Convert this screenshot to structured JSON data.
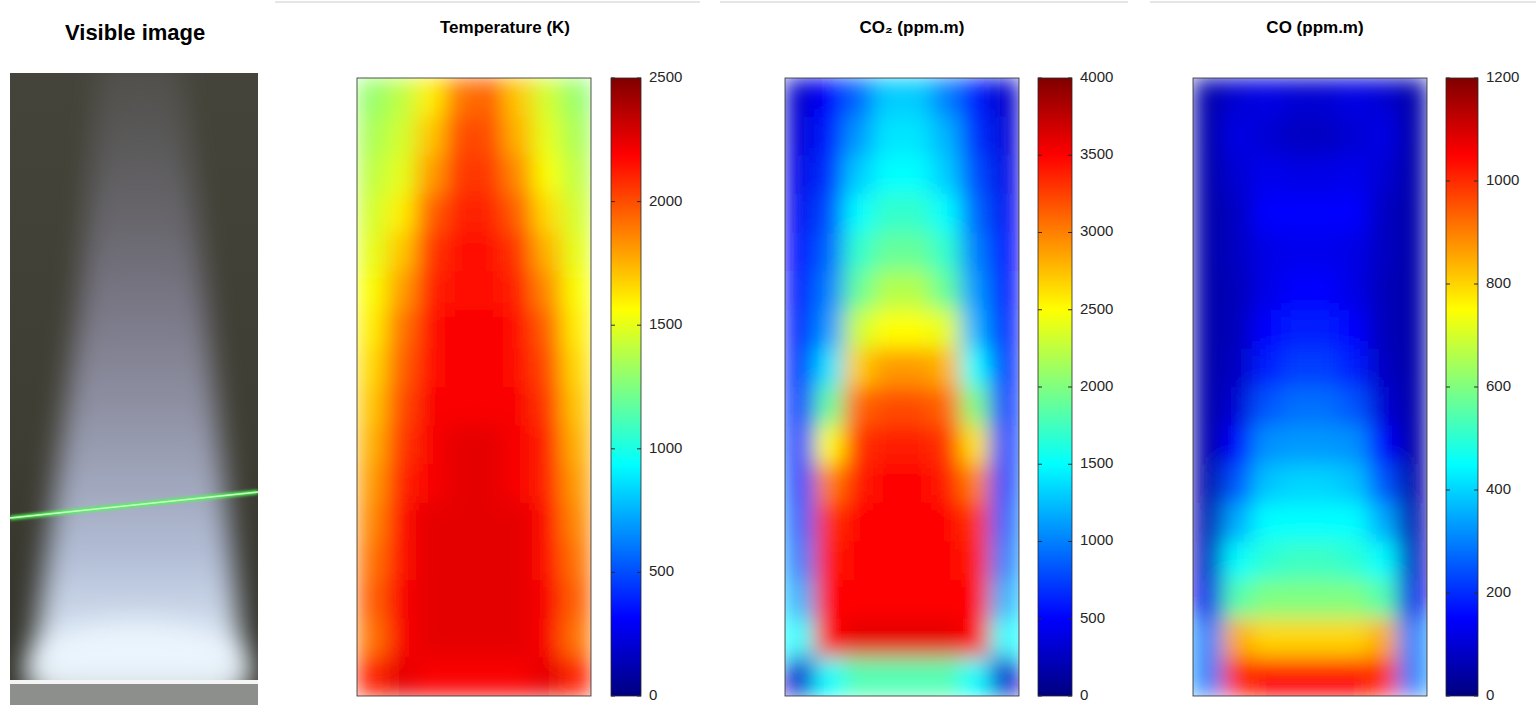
{
  "chart_data": [
    {
      "type": "image",
      "title": "Visible image"
    },
    {
      "type": "heatmap",
      "title": "Temperature (K)",
      "zlim": [
        0,
        2500
      ],
      "zticks": [
        0,
        500,
        1000,
        1500,
        2000,
        2500
      ],
      "tick_labels": false,
      "cells": [
        [
          1300,
          1400,
          1600,
          1900,
          1950,
          1700,
          1450,
          1300
        ],
        [
          1350,
          1450,
          1700,
          2000,
          2000,
          1750,
          1500,
          1350
        ],
        [
          1400,
          1500,
          1800,
          2050,
          2050,
          1850,
          1550,
          1400
        ],
        [
          1450,
          1600,
          1950,
          2100,
          2100,
          1950,
          1650,
          1450
        ],
        [
          1500,
          1700,
          2050,
          2150,
          2150,
          2050,
          1750,
          1500
        ],
        [
          1550,
          1800,
          2100,
          2150,
          2150,
          2100,
          1850,
          1550
        ],
        [
          1600,
          1900,
          2150,
          2200,
          2200,
          2150,
          1950,
          1600
        ],
        [
          1650,
          1950,
          2150,
          2200,
          2200,
          2150,
          2000,
          1650
        ],
        [
          1700,
          2000,
          2200,
          2200,
          2200,
          2200,
          2050,
          1700
        ],
        [
          1750,
          2050,
          2200,
          2250,
          2250,
          2200,
          2100,
          1750
        ],
        [
          1800,
          2100,
          2200,
          2250,
          2250,
          2200,
          2100,
          1800
        ],
        [
          1850,
          2150,
          2250,
          2250,
          2250,
          2250,
          2150,
          1850
        ],
        [
          1900,
          2150,
          2250,
          2250,
          2250,
          2250,
          2150,
          1900
        ],
        [
          1950,
          2200,
          2250,
          2250,
          2250,
          2250,
          2200,
          1950
        ],
        [
          1900,
          2200,
          2250,
          2250,
          2250,
          2250,
          2200,
          1900
        ],
        [
          2100,
          2250,
          2200,
          2200,
          2200,
          2200,
          2250,
          2100
        ]
      ]
    },
    {
      "type": "heatmap",
      "title": "CO₂ (ppm.m)",
      "zlim": [
        0,
        4000
      ],
      "zticks": [
        0,
        500,
        1000,
        1500,
        2000,
        2500,
        3000,
        3500,
        4000
      ],
      "tick_labels": false,
      "cells": [
        [
          300,
          500,
          900,
          1300,
          1300,
          1000,
          600,
          300
        ],
        [
          350,
          600,
          1100,
          1400,
          1400,
          1200,
          700,
          350
        ],
        [
          400,
          700,
          1300,
          1500,
          1500,
          1300,
          800,
          400
        ],
        [
          450,
          800,
          1500,
          1700,
          1700,
          1500,
          900,
          450
        ],
        [
          500,
          900,
          1700,
          1900,
          1900,
          1700,
          1000,
          500
        ],
        [
          550,
          1000,
          1900,
          2200,
          2200,
          1900,
          1100,
          550
        ],
        [
          600,
          1100,
          2300,
          2500,
          2500,
          2400,
          1200,
          600
        ],
        [
          650,
          1400,
          2700,
          2900,
          2900,
          2800,
          1500,
          650
        ],
        [
          700,
          1900,
          3100,
          3200,
          3200,
          3100,
          2000,
          700
        ],
        [
          750,
          2500,
          3300,
          3400,
          3400,
          3300,
          2600,
          750
        ],
        [
          800,
          3000,
          3400,
          3500,
          3500,
          3400,
          3000,
          800
        ],
        [
          900,
          3300,
          3500,
          3500,
          3500,
          3500,
          3300,
          900
        ],
        [
          1000,
          3400,
          3500,
          3500,
          3500,
          3500,
          3400,
          1000
        ],
        [
          1200,
          3500,
          3500,
          3500,
          3500,
          3500,
          3500,
          1200
        ],
        [
          1500,
          3500,
          3600,
          3600,
          3600,
          3600,
          3500,
          1500
        ],
        [
          300,
          1500,
          1800,
          1800,
          1800,
          1800,
          1500,
          300
        ]
      ]
    },
    {
      "type": "heatmap",
      "title": "CO (ppm.m)",
      "zlim": [
        0,
        1200
      ],
      "zticks": [
        0,
        200,
        400,
        600,
        800,
        1000,
        1200
      ],
      "tick_labels": false,
      "cells": [
        [
          50,
          100,
          120,
          100,
          100,
          120,
          100,
          50
        ],
        [
          50,
          120,
          100,
          80,
          80,
          100,
          120,
          50
        ],
        [
          50,
          100,
          130,
          120,
          120,
          130,
          100,
          50
        ],
        [
          50,
          80,
          150,
          150,
          150,
          150,
          80,
          50
        ],
        [
          50,
          80,
          120,
          130,
          130,
          120,
          80,
          50
        ],
        [
          50,
          70,
          120,
          150,
          150,
          120,
          70,
          50
        ],
        [
          50,
          70,
          150,
          180,
          180,
          150,
          70,
          50
        ],
        [
          50,
          80,
          180,
          220,
          220,
          180,
          80,
          50
        ],
        [
          50,
          100,
          250,
          280,
          280,
          250,
          100,
          50
        ],
        [
          50,
          150,
          320,
          330,
          330,
          320,
          150,
          50
        ],
        [
          50,
          250,
          380,
          400,
          400,
          380,
          250,
          50
        ],
        [
          60,
          350,
          450,
          450,
          450,
          450,
          350,
          60
        ],
        [
          80,
          450,
          500,
          520,
          520,
          500,
          450,
          80
        ],
        [
          120,
          550,
          600,
          600,
          600,
          600,
          550,
          120
        ],
        [
          300,
          850,
          800,
          800,
          800,
          800,
          850,
          300
        ],
        [
          300,
          1000,
          1050,
          1050,
          1050,
          1050,
          1000,
          300
        ]
      ]
    }
  ]
}
